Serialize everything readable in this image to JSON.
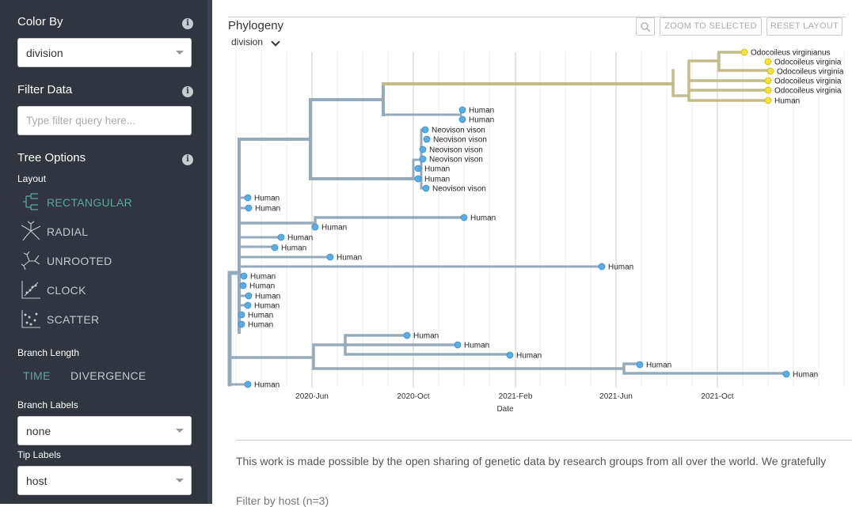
{
  "sidebar": {
    "color_by": {
      "title": "Color By",
      "value": "division"
    },
    "filter_data": {
      "title": "Filter Data",
      "placeholder": "Type filter query here..."
    },
    "tree_options": {
      "title": "Tree Options",
      "layout_label": "Layout",
      "layouts": [
        {
          "label": "RECTANGULAR",
          "icon": "rectangular-layout-icon",
          "active": true
        },
        {
          "label": "RADIAL",
          "icon": "radial-layout-icon",
          "active": false
        },
        {
          "label": "UNROOTED",
          "icon": "unrooted-layout-icon",
          "active": false
        },
        {
          "label": "CLOCK",
          "icon": "clock-layout-icon",
          "active": false
        },
        {
          "label": "SCATTER",
          "icon": "scatter-layout-icon",
          "active": false
        }
      ],
      "branch_length_label": "Branch Length",
      "branch_length_options": [
        "TIME",
        "DIVERGENCE"
      ],
      "branch_labels_label": "Branch Labels",
      "branch_labels_value": "none",
      "tip_labels_label": "Tip Labels",
      "tip_labels_value": "host"
    }
  },
  "main": {
    "title": "Phylogeny",
    "color_selector": "division",
    "buttons": {
      "zoom_selected": "ZOOM TO SELECTED",
      "reset_layout": "RESET LAYOUT"
    },
    "footer_text": "This work is made possible by the open sharing of genetic data by research groups from all over the world. We gratefully",
    "filter_host": "Filter by host (n=3)"
  },
  "tree": {
    "axis_title": "Date",
    "ticks": [
      "2020-Jun",
      "2020-Oct",
      "2021-Feb",
      "2021-Jun",
      "2021-Oct"
    ],
    "branch_color": "#95abbb",
    "clade_color": "#c4bb8a",
    "tip_blue": "#5aade6",
    "tip_yellow": "#f3e437",
    "tips": [
      "Odocoileus virginianus",
      "Odocoileus virginia",
      "Odocoileus virginia",
      "Odocoileus virginia",
      "Odocoileus virginia",
      "Human",
      "Human",
      "Human",
      "Neovison vison",
      "Neovison vison",
      "Neovison vison",
      "Neovison vison",
      "Human",
      "Human",
      "Neovison vison",
      "Human",
      "Human",
      "Human",
      "Human",
      "Human",
      "Human",
      "Human",
      "Human",
      "Human",
      "Human",
      "Human",
      "Human",
      "Human",
      "Human",
      "Human",
      "Human",
      "Human",
      "Human",
      "Human",
      "Human"
    ]
  }
}
